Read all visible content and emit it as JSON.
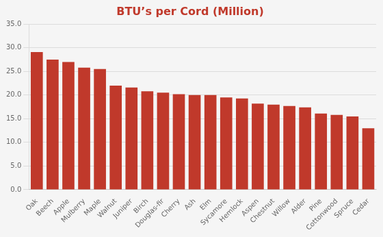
{
  "chart_data": {
    "type": "bar",
    "title": "BTU’s per Cord (Million)",
    "categories": [
      "Oak",
      "Beech",
      "Apple",
      "Mulberry",
      "Maple",
      "Walnut",
      "Juniper",
      "Birch",
      "Douglas-fir",
      "Cherry",
      "Ash",
      "Elm",
      "Sycamore",
      "Hemlock",
      "Aspen",
      "Chestnut",
      "Willow",
      "Alder",
      "Pine",
      "Cottonwood",
      "Spruce",
      "Cedar"
    ],
    "values": [
      29.1,
      27.5,
      27.0,
      25.8,
      25.5,
      22.0,
      21.6,
      20.8,
      20.5,
      20.2,
      20.0,
      20.0,
      19.5,
      19.3,
      18.2,
      18.0,
      17.7,
      17.4,
      16.1,
      15.8,
      15.5,
      13.0
    ],
    "color": "#c0392b",
    "ylim": [
      0,
      35
    ],
    "yticks": [
      {
        "value": 0,
        "label": "0.0"
      },
      {
        "value": 5,
        "label": "5.0"
      },
      {
        "value": 10,
        "label": "10.0"
      },
      {
        "value": 15,
        "label": "15.0"
      },
      {
        "value": 20,
        "label": "20.0"
      },
      {
        "value": 25,
        "label": "25.0"
      },
      {
        "value": 30,
        "label": "30.0"
      },
      {
        "value": 35,
        "label": "35.0"
      }
    ],
    "grid": true
  }
}
